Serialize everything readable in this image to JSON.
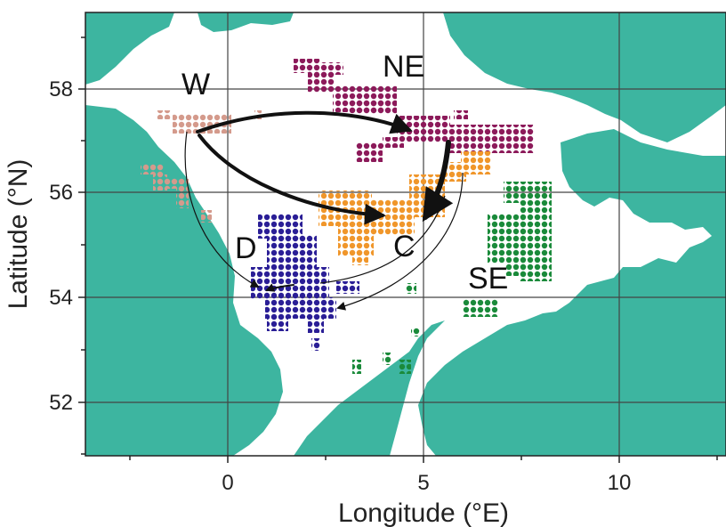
{
  "axes": {
    "x_title": "Longitude (°E)",
    "y_title": "Latitude (°N)",
    "x_ticks": [
      "0",
      "5",
      "10"
    ],
    "y_ticks": [
      "52",
      "54",
      "56",
      "58"
    ]
  },
  "regions": {
    "W": "W",
    "NE": "NE",
    "C": "C",
    "D": "D",
    "SE": "SE"
  },
  "colors": {
    "land": "#3db5a0",
    "sea": "#ffffff",
    "W": "#d49a8c",
    "NE": "#8c1a5a",
    "C": "#f0962a",
    "D": "#2a1e96",
    "SE": "#1a8a3a",
    "arrows": "#111111"
  }
}
